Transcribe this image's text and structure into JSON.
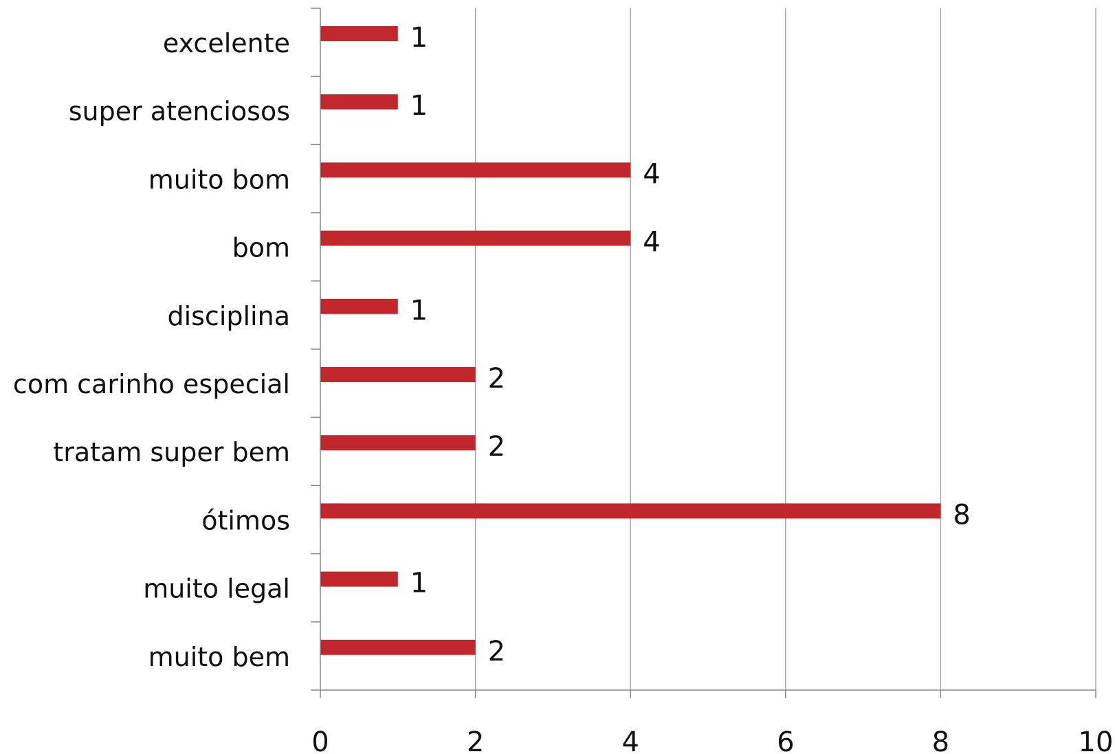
{
  "chart_data": {
    "type": "bar",
    "orientation": "horizontal",
    "categories": [
      "excelente",
      "super atenciosos",
      "muito bom",
      "bom",
      "disciplina",
      "com carinho especial",
      "tratam super bem",
      "ótimos",
      "muito legal",
      "muito bem"
    ],
    "values": [
      1,
      1,
      4,
      4,
      1,
      2,
      2,
      8,
      1,
      2
    ],
    "data_labels": [
      "1",
      "1",
      "4",
      "4",
      "1",
      "2",
      "2",
      "8",
      "1",
      "2"
    ],
    "xlim": [
      0,
      10
    ],
    "x_ticks": [
      0,
      2,
      4,
      6,
      8,
      10
    ],
    "x_tick_labels": [
      "0",
      "2",
      "4",
      "6",
      "8",
      "10"
    ],
    "title": "",
    "xlabel": "",
    "ylabel": "",
    "grid": "vertical",
    "legend": "none",
    "bar_color": "#c0282d"
  }
}
